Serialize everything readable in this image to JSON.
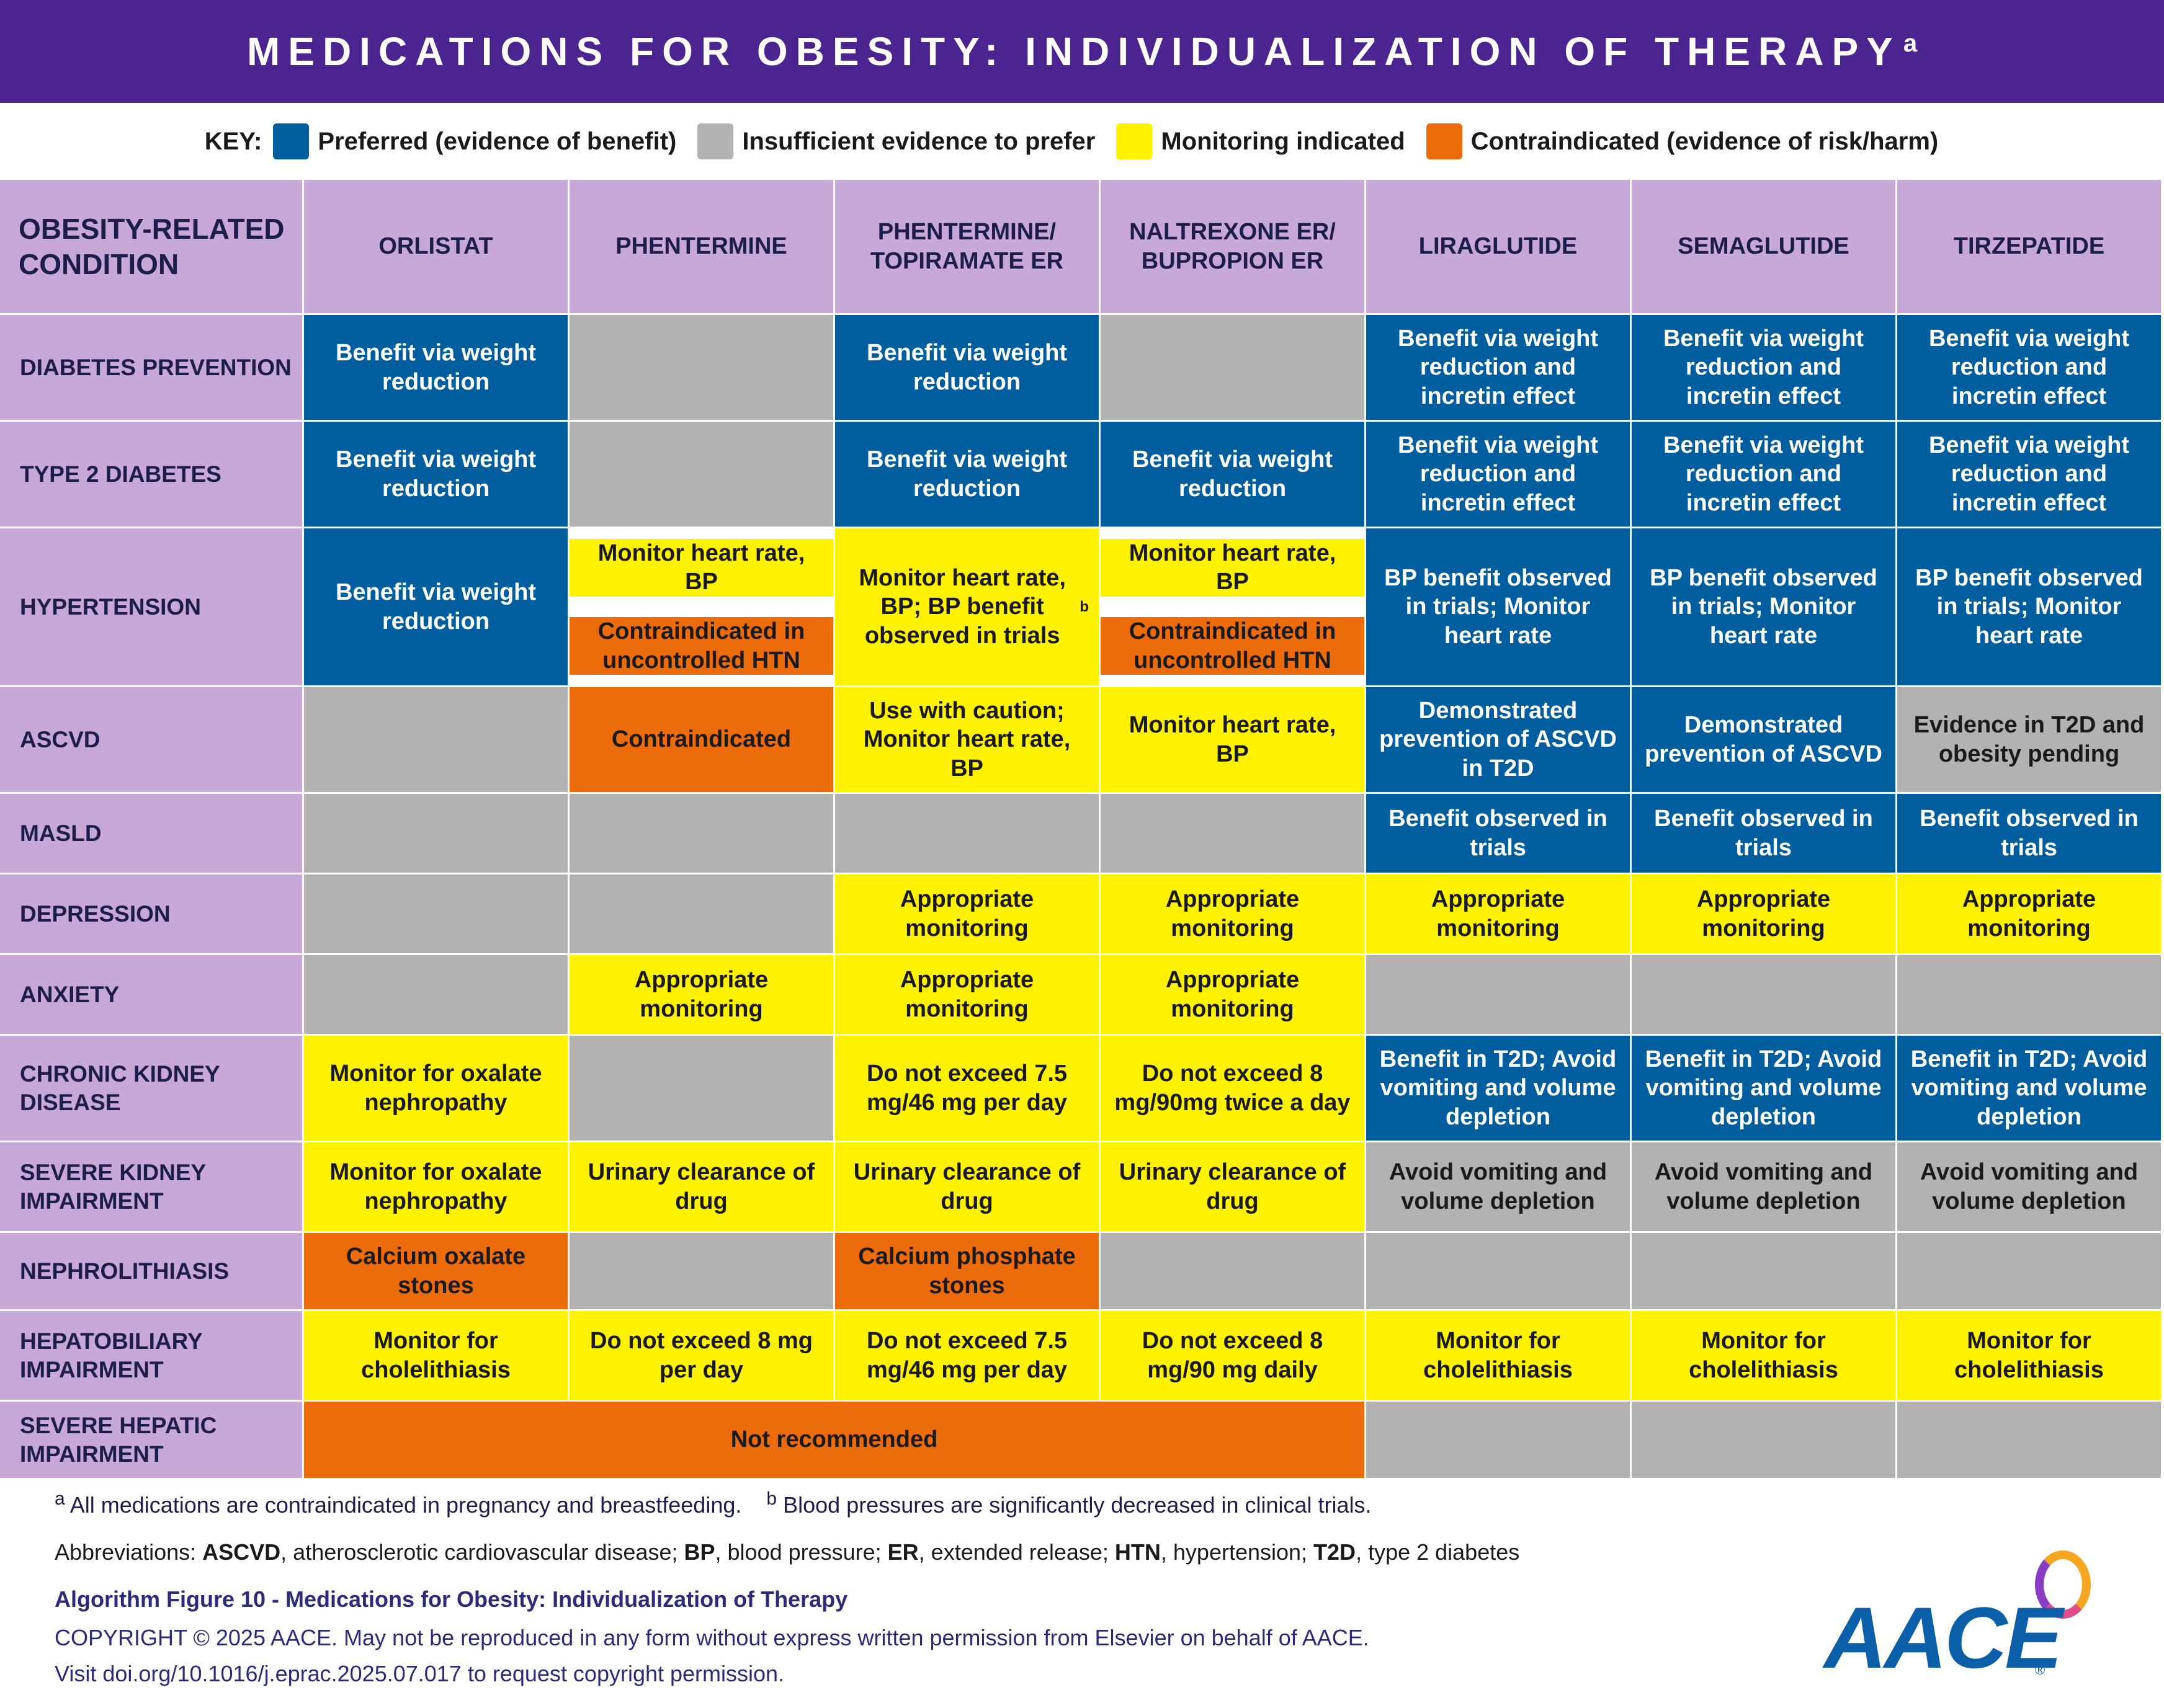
{
  "title": "MEDICATIONS FOR OBESITY: INDIVIDUALIZATION OF THERAPY",
  "title_sup": "a",
  "key": {
    "label": "KEY:",
    "items": [
      {
        "label": "Preferred (evidence of benefit)",
        "color": "#005e9e"
      },
      {
        "label": "Insufficient evidence to prefer",
        "color": "#b4b1b1"
      },
      {
        "label": "Monitoring indicated",
        "color": "#fff200"
      },
      {
        "label": "Contraindicated (evidence of risk/harm)",
        "color": "#ec6b0a"
      }
    ]
  },
  "headers": {
    "condition": "OBESITY-RELATED CONDITION",
    "drugs": [
      "ORLISTAT",
      "PHENTERMINE",
      "PHENTERMINE/ TOPIRAMATE ER",
      "NALTREXONE ER/ BUPROPION ER",
      "LIRAGLUTIDE",
      "SEMAGLUTIDE",
      "TIRZEPATIDE"
    ]
  },
  "rows": [
    {
      "condition": "DIABETES PREVENTION",
      "cells": [
        {
          "text": "Benefit via weight reduction",
          "status": "blue"
        },
        {
          "text": "",
          "status": "gray"
        },
        {
          "text": "Benefit via weight reduction",
          "status": "blue"
        },
        {
          "text": "",
          "status": "gray"
        },
        {
          "text": "Benefit via weight reduction and incretin effect",
          "status": "blue"
        },
        {
          "text": "Benefit via weight reduction and incretin effect",
          "status": "blue"
        },
        {
          "text": "Benefit via weight reduction and incretin effect",
          "status": "blue"
        }
      ]
    },
    {
      "condition": "TYPE 2 DIABETES",
      "cells": [
        {
          "text": "Benefit via weight reduction",
          "status": "blue"
        },
        {
          "text": "",
          "status": "gray"
        },
        {
          "text": "Benefit via weight reduction",
          "status": "blue"
        },
        {
          "text": "Benefit via weight reduction",
          "status": "blue"
        },
        {
          "text": "Benefit via weight reduction and incretin effect",
          "status": "blue"
        },
        {
          "text": "Benefit via weight reduction and incretin effect",
          "status": "blue"
        },
        {
          "text": "Benefit via weight reduction and incretin effect",
          "status": "blue"
        }
      ]
    },
    {
      "condition": "HYPERTENSION",
      "cells": [
        {
          "text": "Benefit via weight reduction",
          "status": "blue"
        },
        {
          "top": "Monitor heart rate, BP",
          "top_status": "yellow",
          "bottom": "Contraindicated in uncontrolled HTN",
          "bottom_status": "orange"
        },
        {
          "text": "Monitor heart rate, BP; BP benefit observed in trials",
          "sup": "b",
          "status": "yellow"
        },
        {
          "top": "Monitor heart rate, BP",
          "top_status": "yellow",
          "bottom": "Contraindicated in uncontrolled HTN",
          "bottom_status": "orange"
        },
        {
          "text": "BP benefit observed in trials; Monitor heart rate",
          "status": "blue"
        },
        {
          "text": "BP benefit observed in trials; Monitor heart rate",
          "status": "blue"
        },
        {
          "text": "BP benefit observed in trials; Monitor heart rate",
          "status": "blue"
        }
      ]
    },
    {
      "condition": "ASCVD",
      "cells": [
        {
          "text": "",
          "status": "gray"
        },
        {
          "text": "Contraindicated",
          "status": "orange"
        },
        {
          "text": "Use with caution; Monitor heart rate, BP",
          "status": "yellow"
        },
        {
          "text": "Monitor heart rate, BP",
          "status": "yellow"
        },
        {
          "text": "Demonstrated prevention of ASCVD in T2D",
          "status": "blue"
        },
        {
          "text": "Demonstrated prevention of ASCVD",
          "status": "blue"
        },
        {
          "text": "Evidence in T2D and obesity pending",
          "status": "gray"
        }
      ]
    },
    {
      "condition": "MASLD",
      "cells": [
        {
          "text": "",
          "status": "gray"
        },
        {
          "text": "",
          "status": "gray"
        },
        {
          "text": "",
          "status": "gray"
        },
        {
          "text": "",
          "status": "gray"
        },
        {
          "text": "Benefit observed in trials",
          "status": "blue"
        },
        {
          "text": "Benefit observed in trials",
          "status": "blue"
        },
        {
          "text": "Benefit observed in trials",
          "status": "blue"
        }
      ]
    },
    {
      "condition": "DEPRESSION",
      "cells": [
        {
          "text": "",
          "status": "gray"
        },
        {
          "text": "",
          "status": "gray"
        },
        {
          "text": "Appropriate monitoring",
          "status": "yellow"
        },
        {
          "text": "Appropriate monitoring",
          "status": "yellow"
        },
        {
          "text": "Appropriate monitoring",
          "status": "yellow"
        },
        {
          "text": "Appropriate monitoring",
          "status": "yellow"
        },
        {
          "text": "Appropriate monitoring",
          "status": "yellow"
        }
      ]
    },
    {
      "condition": "ANXIETY",
      "cells": [
        {
          "text": "",
          "status": "gray"
        },
        {
          "text": "Appropriate monitoring",
          "status": "yellow"
        },
        {
          "text": "Appropriate monitoring",
          "status": "yellow"
        },
        {
          "text": "Appropriate monitoring",
          "status": "yellow"
        },
        {
          "text": "",
          "status": "gray"
        },
        {
          "text": "",
          "status": "gray"
        },
        {
          "text": "",
          "status": "gray"
        }
      ]
    },
    {
      "condition": "CHRONIC KIDNEY DISEASE",
      "cells": [
        {
          "text": "Monitor for oxalate nephropathy",
          "status": "yellow"
        },
        {
          "text": "",
          "status": "gray"
        },
        {
          "text": "Do not exceed 7.5 mg/46 mg per day",
          "status": "yellow"
        },
        {
          "text": "Do not exceed 8 mg/90mg twice a day",
          "status": "yellow"
        },
        {
          "text": "Benefit in T2D; Avoid vomiting and volume depletion",
          "status": "blue"
        },
        {
          "text": "Benefit in T2D; Avoid vomiting and volume depletion",
          "status": "blue"
        },
        {
          "text": "Benefit in T2D; Avoid vomiting and volume depletion",
          "status": "blue"
        }
      ]
    },
    {
      "condition": "SEVERE KIDNEY IMPAIRMENT",
      "cells": [
        {
          "text": "Monitor for oxalate nephropathy",
          "status": "yellow"
        },
        {
          "text": "Urinary clearance of drug",
          "status": "yellow"
        },
        {
          "text": "Urinary clearance of drug",
          "status": "yellow"
        },
        {
          "text": "Urinary clearance of drug",
          "status": "yellow"
        },
        {
          "text": "Avoid vomiting and volume depletion",
          "status": "gray"
        },
        {
          "text": "Avoid vomiting and volume depletion",
          "status": "gray"
        },
        {
          "text": "Avoid vomiting and volume depletion",
          "status": "gray"
        }
      ]
    },
    {
      "condition": "NEPHROLITHIASIS",
      "cells": [
        {
          "text": "Calcium oxalate stones",
          "status": "orange"
        },
        {
          "text": "",
          "status": "gray"
        },
        {
          "text": "Calcium phosphate stones",
          "status": "orange"
        },
        {
          "text": "",
          "status": "gray"
        },
        {
          "text": "",
          "status": "gray"
        },
        {
          "text": "",
          "status": "gray"
        },
        {
          "text": "",
          "status": "gray"
        }
      ]
    },
    {
      "condition": "HEPATOBILIARY IMPAIRMENT",
      "cells": [
        {
          "text": "Monitor for cholelithiasis",
          "status": "yellow"
        },
        {
          "text": "Do not exceed 8 mg per day",
          "status": "yellow"
        },
        {
          "text": "Do not exceed 7.5 mg/46 mg per day",
          "status": "yellow"
        },
        {
          "text": "Do not exceed 8 mg/90 mg daily",
          "status": "yellow"
        },
        {
          "text": "Monitor for cholelithiasis",
          "status": "yellow"
        },
        {
          "text": "Monitor for cholelithiasis",
          "status": "yellow"
        },
        {
          "text": "Monitor for cholelithiasis",
          "status": "yellow"
        }
      ]
    },
    {
      "condition": "SEVERE HEPATIC IMPAIRMENT",
      "merged": {
        "text": "Not recommended",
        "status": "orange",
        "span": 4
      },
      "cells": [
        {
          "text": "",
          "status": "gray"
        },
        {
          "text": "",
          "status": "gray"
        },
        {
          "text": "",
          "status": "gray"
        }
      ]
    }
  ],
  "footnotes": {
    "a_mark": "a",
    "a_text": "All medications are contraindicated in pregnancy and breastfeeding.",
    "b_mark": "b",
    "b_text": "Blood pressures are significantly decreased in clinical trials."
  },
  "abbreviations": {
    "prefix": "Abbreviations: ",
    "items": [
      {
        "abbr": "ASCVD",
        "def": ", atherosclerotic cardiovascular disease; "
      },
      {
        "abbr": "BP",
        "def": ", blood pressure; "
      },
      {
        "abbr": "ER",
        "def": ", extended release; "
      },
      {
        "abbr": "HTN",
        "def": ", hypertension; "
      },
      {
        "abbr": "T2D",
        "def": ", type 2 diabetes"
      }
    ]
  },
  "figure_caption": "Algorithm Figure 10 - Medications for Obesity: Individualization of Therapy",
  "copyright": "COPYRIGHT © 2025 AACE. May not be reproduced in any form without express written permission from Elsevier on behalf of AACE.",
  "visit": "Visit doi.org/10.1016/j.eprac.2025.07.017 to request copyright permission.",
  "logo": {
    "text": "AACE",
    "reg": "®"
  }
}
